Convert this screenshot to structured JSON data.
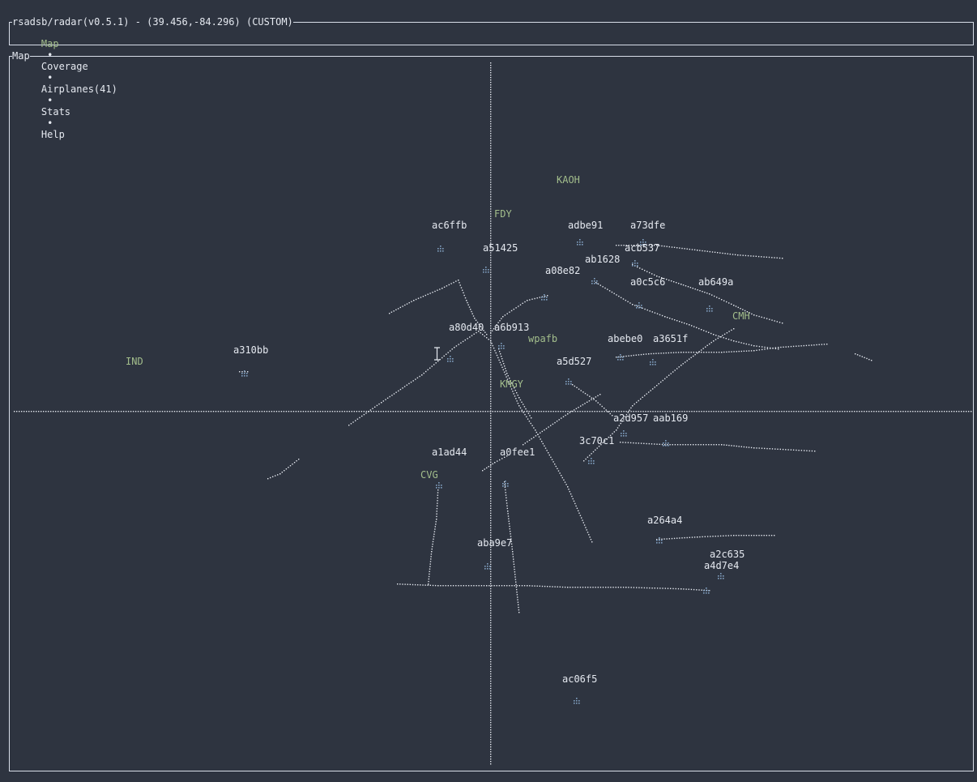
{
  "header": {
    "title": "rsadsb/radar(v0.5.1) - (39.456,-84.296) (CUSTOM)",
    "tabs": [
      {
        "label": "Map",
        "active": true
      },
      {
        "label": "Coverage",
        "active": false
      },
      {
        "label": "Airplanes(41)",
        "active": false
      },
      {
        "label": "Stats",
        "active": false
      },
      {
        "label": "Help",
        "active": false
      }
    ],
    "separator": "•"
  },
  "map": {
    "title": "Map",
    "colors": {
      "background": "#2e3440",
      "track": "#e5e9f0",
      "plane_marker": "#81a1c1",
      "airport": "#a3be8c"
    },
    "airports": [
      {
        "name": "KAOH"
      },
      {
        "name": "FDY"
      },
      {
        "name": "wpafb"
      },
      {
        "name": "IND"
      },
      {
        "name": "KMGY"
      },
      {
        "name": "CMH"
      },
      {
        "name": "CVG"
      }
    ],
    "airplanes": [
      {
        "icao": "ac6ffb"
      },
      {
        "icao": "adbe91"
      },
      {
        "icao": "a73dfe"
      },
      {
        "icao": "a51425"
      },
      {
        "icao": "acb537"
      },
      {
        "icao": "ab1628"
      },
      {
        "icao": "a08e82"
      },
      {
        "icao": "a0c5c6"
      },
      {
        "icao": "ab649a"
      },
      {
        "icao": "a80d40"
      },
      {
        "icao": "a6b913"
      },
      {
        "icao": "abebe0"
      },
      {
        "icao": "a3651f"
      },
      {
        "icao": "a310bb"
      },
      {
        "icao": "a5d527"
      },
      {
        "icao": "a2d957"
      },
      {
        "icao": "aab169"
      },
      {
        "icao": "3c70c1"
      },
      {
        "icao": "a1ad44"
      },
      {
        "icao": "a0fee1"
      },
      {
        "icao": "a264a4"
      },
      {
        "icao": "a2c635"
      },
      {
        "icao": "a4d7e4"
      },
      {
        "icao": "aba9e7"
      },
      {
        "icao": "ac06f5"
      }
    ]
  }
}
